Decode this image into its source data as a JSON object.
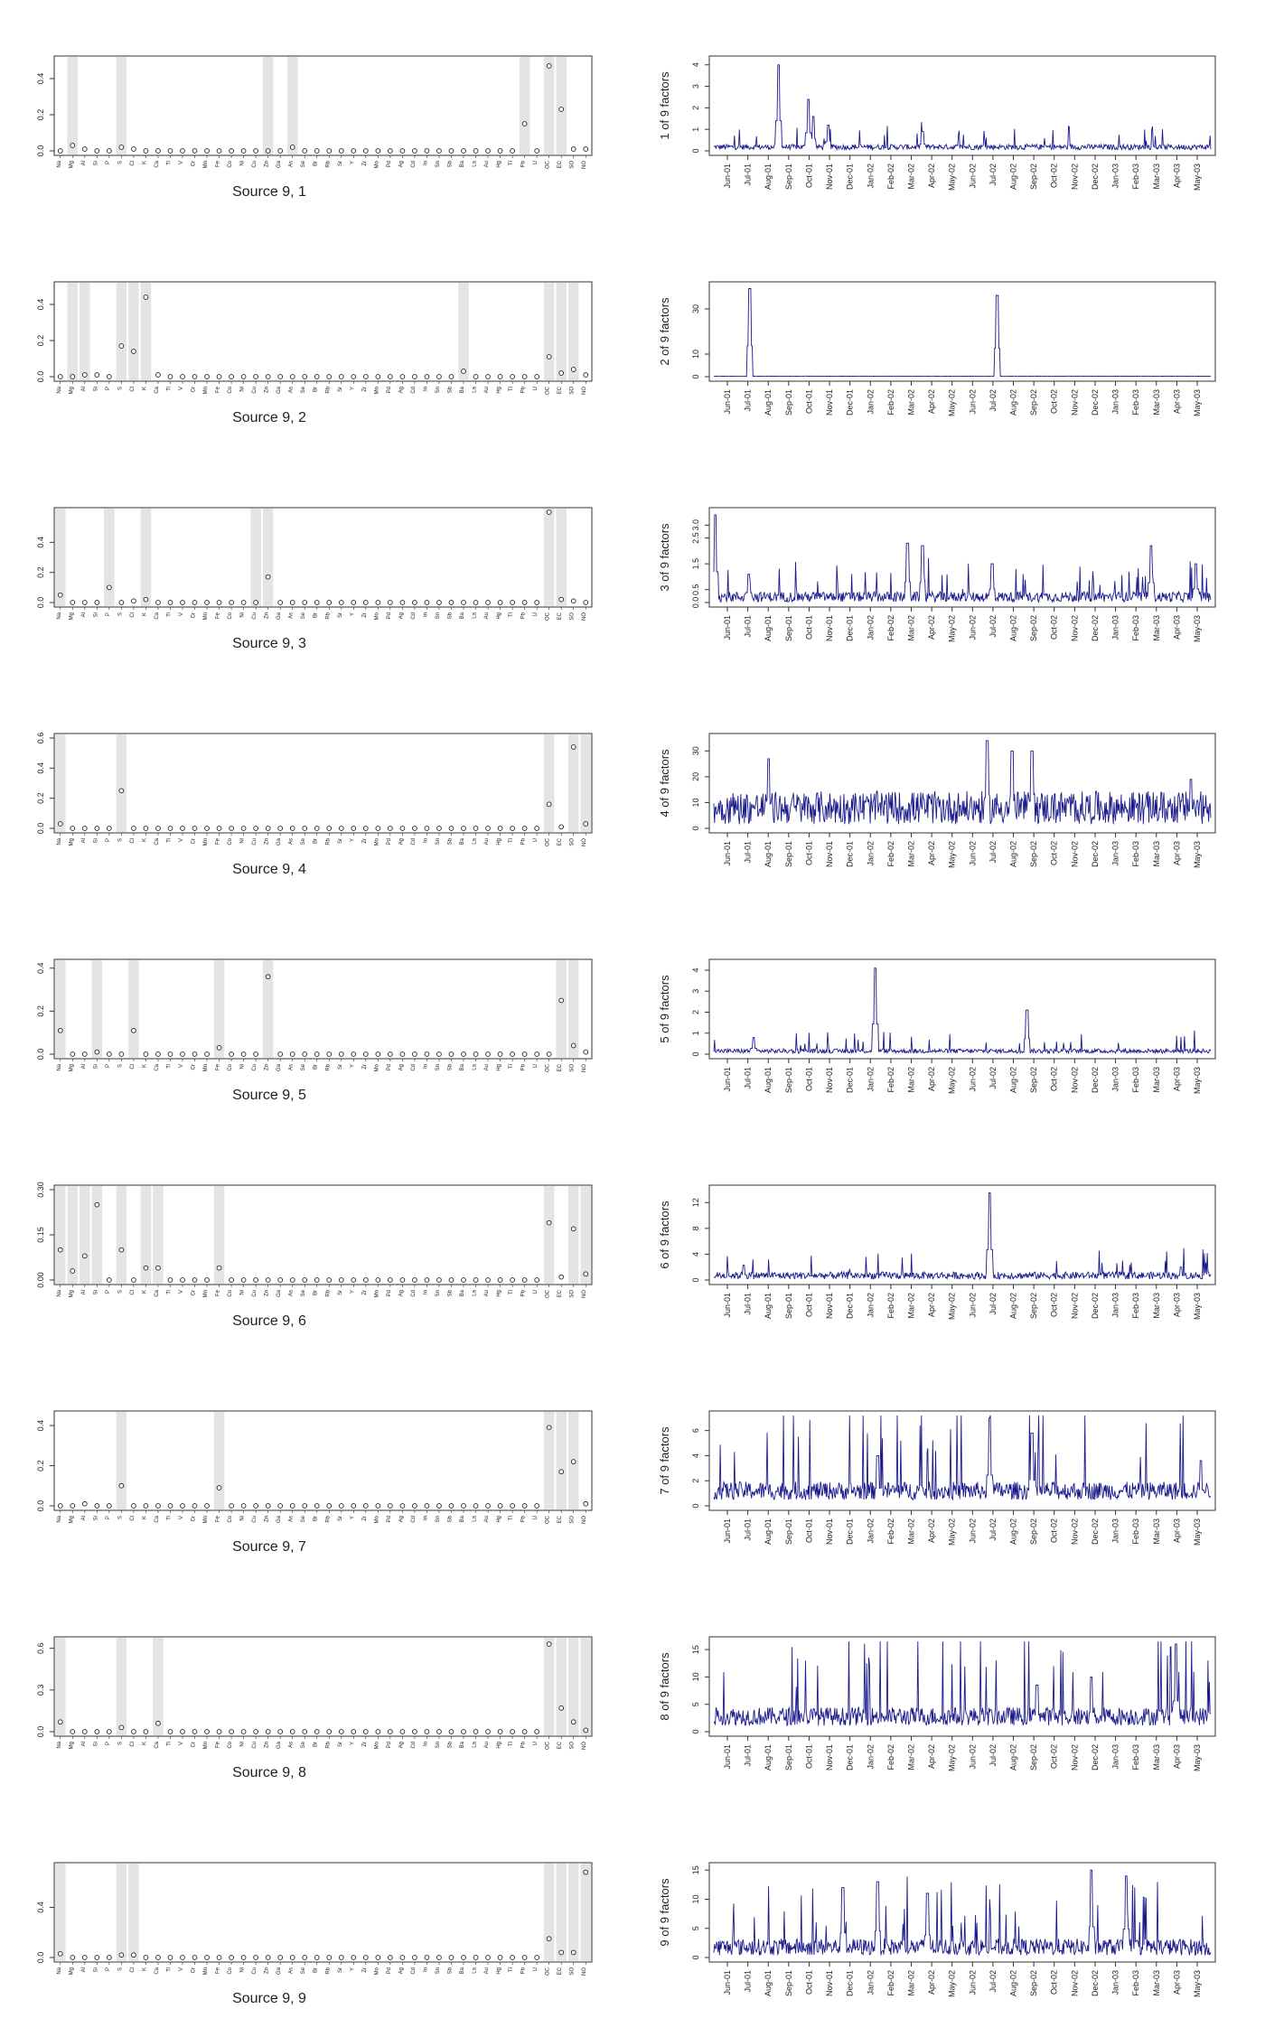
{
  "chart_data": {
    "type": "figure_grid",
    "element_labels": [
      "Na",
      "Mg",
      "Al",
      "Si",
      "P",
      "S",
      "Cl",
      "K",
      "Ca",
      "Ti",
      "V",
      "Cr",
      "Mn",
      "Fe",
      "Co",
      "Ni",
      "Cu",
      "Zn",
      "Ga",
      "As",
      "Se",
      "Br",
      "Rb",
      "Sr",
      "Y",
      "Zr",
      "Mo",
      "Pd",
      "Ag",
      "Cd",
      "In",
      "Sn",
      "Sb",
      "Ba",
      "La",
      "Au",
      "Hg",
      "Tl",
      "Pb",
      "U",
      "OC",
      "EC",
      "SO",
      "NO"
    ],
    "month_labels": [
      "Jun-01",
      "Jul-01",
      "Aug-01",
      "Sep-01",
      "Oct-01",
      "Nov-01",
      "Dec-01",
      "Jan-02",
      "Feb-02",
      "Mar-02",
      "Apr-02",
      "May-02",
      "Jun-02",
      "Jul-02",
      "Aug-02",
      "Sep-02",
      "Oct-02",
      "Nov-02",
      "Dec-02",
      "Jan-03",
      "Feb-03",
      "Mar-03",
      "Apr-03",
      "May-03"
    ],
    "profiles": [
      {
        "caption": "Source 9, 1",
        "ylim": [
          0,
          0.5
        ],
        "yticks": [
          "0.0",
          "0.2",
          "0.4"
        ],
        "shaded": [
          1,
          5,
          17,
          19,
          38,
          40,
          41
        ],
        "points": {
          "1": 0.03,
          "2": 0.01,
          "5": 0.02,
          "6": 0.01,
          "19": 0.02,
          "38": 0.15,
          "40": 0.47,
          "41": 0.23,
          "42": 0.01,
          "43": 0.01
        }
      },
      {
        "caption": "Source 9, 2",
        "ylim": [
          0,
          0.5
        ],
        "yticks": [
          "0.0",
          "0.2",
          "0.4"
        ],
        "shaded": [
          1,
          2,
          5,
          6,
          7,
          33,
          40,
          41,
          42
        ],
        "points": {
          "2": 0.01,
          "3": 0.01,
          "5": 0.17,
          "6": 0.14,
          "7": 0.44,
          "8": 0.01,
          "33": 0.03,
          "40": 0.11,
          "41": 0.02,
          "42": 0.04,
          "43": 0.01
        }
      },
      {
        "caption": "Source 9, 3",
        "ylim": [
          0,
          0.6
        ],
        "yticks": [
          "0.0",
          "0.2",
          "0.4"
        ],
        "shaded": [
          0,
          4,
          7,
          16,
          17,
          40,
          41
        ],
        "points": {
          "0": 0.05,
          "4": 0.1,
          "6": 0.01,
          "7": 0.02,
          "17": 0.17,
          "40": 0.6,
          "41": 0.02,
          "42": 0.01
        }
      },
      {
        "caption": "Source 9, 4",
        "ylim": [
          0,
          0.6
        ],
        "yticks": [
          "0.0",
          "0.2",
          "0.4",
          "0.6"
        ],
        "shaded": [
          0,
          5,
          40,
          42,
          43
        ],
        "points": {
          "0": 0.03,
          "5": 0.25,
          "40": 0.16,
          "41": 0.01,
          "42": 0.54,
          "43": 0.03
        }
      },
      {
        "caption": "Source 9, 5",
        "ylim": [
          0,
          0.42
        ],
        "yticks": [
          "0.0",
          "0.2",
          "0.4"
        ],
        "shaded": [
          0,
          3,
          6,
          13,
          17,
          41,
          42
        ],
        "points": {
          "0": 0.11,
          "3": 0.01,
          "6": 0.11,
          "13": 0.03,
          "17": 0.36,
          "41": 0.25,
          "42": 0.04,
          "43": 0.01
        }
      },
      {
        "caption": "Source 9, 6",
        "ylim": [
          0,
          0.3
        ],
        "yticks": [
          "0.00",
          "0.15",
          "0.30"
        ],
        "shaded": [
          0,
          1,
          2,
          3,
          5,
          7,
          8,
          13,
          40,
          42,
          43
        ],
        "points": {
          "0": 0.1,
          "1": 0.03,
          "2": 0.08,
          "3": 0.25,
          "5": 0.1,
          "7": 0.04,
          "8": 0.04,
          "13": 0.04,
          "40": 0.19,
          "41": 0.01,
          "42": 0.17,
          "43": 0.02
        }
      },
      {
        "caption": "Source 9, 7",
        "ylim": [
          0,
          0.45
        ],
        "yticks": [
          "0.0",
          "0.2",
          "0.4"
        ],
        "shaded": [
          5,
          13,
          40,
          41,
          42
        ],
        "points": {
          "2": 0.01,
          "5": 0.1,
          "13": 0.09,
          "40": 0.39,
          "41": 0.17,
          "42": 0.22,
          "43": 0.01
        }
      },
      {
        "caption": "Source 9, 8",
        "ylim": [
          0,
          0.65
        ],
        "yticks": [
          "0.0",
          "0.3",
          "0.6"
        ],
        "shaded": [
          0,
          5,
          8,
          40,
          41,
          42,
          43
        ],
        "points": {
          "0": 0.07,
          "5": 0.03,
          "8": 0.06,
          "40": 0.63,
          "41": 0.17,
          "42": 0.07,
          "43": 0.01
        }
      },
      {
        "caption": "Source 9, 9",
        "ylim": [
          0,
          0.72
        ],
        "yticks": [
          "0.0",
          "0.4"
        ],
        "shaded": [
          0,
          5,
          6,
          40,
          41,
          42,
          43
        ],
        "points": {
          "0": 0.03,
          "5": 0.02,
          "6": 0.02,
          "40": 0.15,
          "41": 0.04,
          "42": 0.04,
          "43": 0.68
        }
      }
    ],
    "timeseries": [
      {
        "ylabel": "1 of 9 factors",
        "ymax": 4.2,
        "yticks": [
          0,
          1,
          2,
          3,
          4
        ],
        "baseline": 0.18,
        "var": 0.7,
        "burst": 0.04,
        "peaks": [
          [
            0.13,
            4.0
          ],
          [
            0.19,
            2.4
          ],
          [
            0.2,
            1.6
          ],
          [
            0.23,
            1.2
          ],
          [
            0.42,
            0.9
          ]
        ]
      },
      {
        "ylabel": "2 of 9 factors",
        "ymax": 40,
        "yticks": [
          0,
          10,
          30
        ],
        "baseline": 0.2,
        "var": 0.5,
        "burst": 0.0,
        "peaks": [
          [
            0.072,
            39
          ],
          [
            0.57,
            36
          ]
        ]
      },
      {
        "ylabel": "3 of 9 factors",
        "ymax": 3.5,
        "yticks": [
          0.0,
          0.5,
          1.5,
          2.5,
          3.0
        ],
        "baseline": 0.22,
        "var": 0.9,
        "burst": 0.06,
        "peaks": [
          [
            0.003,
            3.4
          ],
          [
            0.07,
            1.1
          ],
          [
            0.39,
            2.3
          ],
          [
            0.42,
            2.2
          ],
          [
            0.56,
            1.5
          ],
          [
            0.88,
            2.2
          ],
          [
            0.97,
            1.5
          ]
        ]
      },
      {
        "ylabel": "4 of 9 factors",
        "ymax": 35,
        "yticks": [
          0,
          10,
          20,
          30
        ],
        "baseline": 8,
        "var": 0.8,
        "burst": 0.0,
        "peaks": [
          [
            0.11,
            27
          ],
          [
            0.55,
            34
          ],
          [
            0.6,
            30
          ],
          [
            0.64,
            30
          ],
          [
            0.96,
            19
          ]
        ]
      },
      {
        "ylabel": "5 of 9 factors",
        "ymax": 4.3,
        "yticks": [
          0,
          1,
          2,
          3,
          4
        ],
        "baseline": 0.15,
        "var": 0.7,
        "burst": 0.03,
        "peaks": [
          [
            0.325,
            4.1
          ],
          [
            0.63,
            2.1
          ],
          [
            0.08,
            0.8
          ]
        ]
      },
      {
        "ylabel": "6 of 9 factors",
        "ymax": 14,
        "yticks": [
          0,
          4,
          8,
          12
        ],
        "baseline": 0.7,
        "var": 0.8,
        "burst": 0.03,
        "peaks": [
          [
            0.555,
            13.5
          ],
          [
            0.06,
            2.3
          ],
          [
            0.94,
            2.0
          ]
        ]
      },
      {
        "ylabel": "7 of 9 factors",
        "ymax": 7.2,
        "yticks": [
          0,
          2,
          4,
          6
        ],
        "baseline": 1.2,
        "var": 0.6,
        "burst": 0.05,
        "peaks": [
          [
            0.555,
            7.0
          ],
          [
            0.64,
            5.8
          ],
          [
            0.33,
            4.0
          ],
          [
            0.98,
            3.6
          ]
        ]
      },
      {
        "ylabel": "8 of 9 factors",
        "ymax": 16.5,
        "yticks": [
          0,
          5,
          10,
          15
        ],
        "baseline": 2.8,
        "var": 0.6,
        "burst": 0.05,
        "peaks": [
          [
            0.93,
            16
          ],
          [
            0.76,
            10
          ],
          [
            0.65,
            8.5
          ]
        ]
      },
      {
        "ylabel": "9 of 9 factors",
        "ymax": 15.5,
        "yticks": [
          0,
          5,
          10,
          15
        ],
        "baseline": 1.8,
        "var": 0.8,
        "burst": 0.05,
        "peaks": [
          [
            0.76,
            15
          ],
          [
            0.26,
            12
          ],
          [
            0.33,
            13
          ],
          [
            0.43,
            11
          ],
          [
            0.83,
            14
          ]
        ]
      }
    ]
  }
}
